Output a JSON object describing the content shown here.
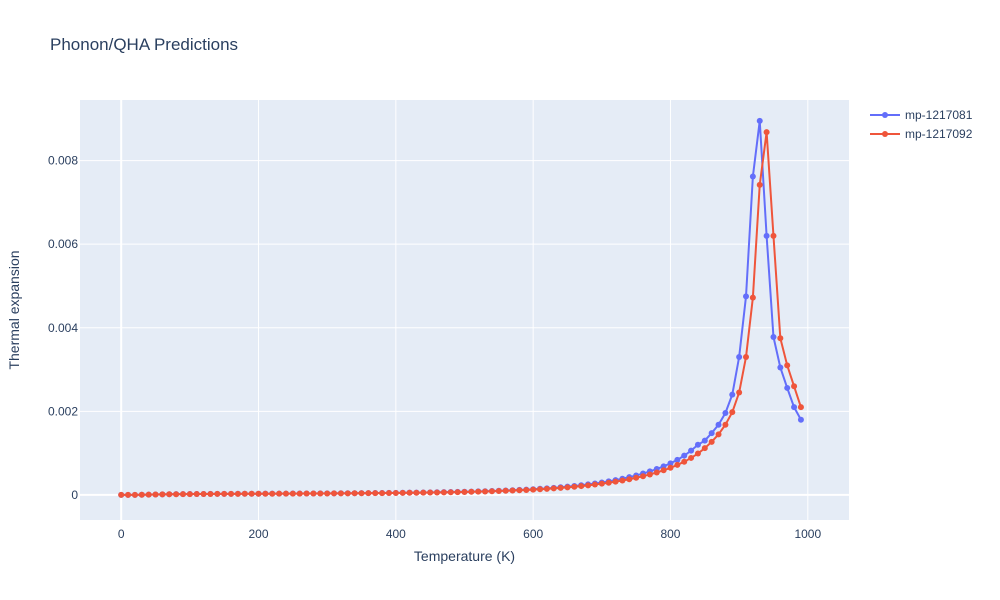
{
  "chart_data": {
    "type": "line",
    "title": "Phonon/QHA Predictions",
    "xlabel": "Temperature (K)",
    "ylabel": "Thermal expansion",
    "xlim": [
      -60,
      1060
    ],
    "ylim": [
      -0.0006,
      0.00945
    ],
    "x_ticks": [
      0,
      200,
      400,
      600,
      800,
      1000
    ],
    "x_tick_labels": [
      "0",
      "200",
      "400",
      "600",
      "800",
      "1000"
    ],
    "y_ticks": [
      0,
      0.002,
      0.004,
      0.006,
      0.008
    ],
    "y_tick_labels": [
      "0",
      "0.002",
      "0.004",
      "0.006",
      "0.008"
    ],
    "grid": true,
    "legend_position": "top-right, outside plot",
    "series": [
      {
        "name": "mp-1217081",
        "color": "#636efa",
        "x": [
          0,
          10,
          20,
          30,
          40,
          50,
          60,
          70,
          80,
          90,
          100,
          110,
          120,
          130,
          140,
          150,
          160,
          170,
          180,
          190,
          200,
          210,
          220,
          230,
          240,
          250,
          260,
          270,
          280,
          290,
          300,
          310,
          320,
          330,
          340,
          350,
          360,
          370,
          380,
          390,
          400,
          410,
          420,
          430,
          440,
          450,
          460,
          470,
          480,
          490,
          500,
          510,
          520,
          530,
          540,
          550,
          560,
          570,
          580,
          590,
          600,
          610,
          620,
          630,
          640,
          650,
          660,
          670,
          680,
          690,
          700,
          710,
          720,
          730,
          740,
          750,
          760,
          770,
          780,
          790,
          800,
          810,
          820,
          830,
          840,
          850,
          860,
          870,
          880,
          890,
          900,
          910,
          920,
          930,
          940,
          950,
          960,
          970,
          980,
          990
        ],
        "y": [
          0,
          0,
          2e-06,
          5e-06,
          8e-06,
          1.1e-05,
          1.4e-05,
          1.6e-05,
          1.8e-05,
          2e-05,
          2.1e-05,
          2.2e-05,
          2.3e-05,
          2.4e-05,
          2.5e-05,
          2.6e-05,
          2.6e-05,
          2.7e-05,
          2.8e-05,
          2.8e-05,
          2.9e-05,
          3e-05,
          3e-05,
          3.1e-05,
          3.2e-05,
          3.3e-05,
          3.3e-05,
          3.4e-05,
          3.5e-05,
          3.6e-05,
          3.7e-05,
          3.8e-05,
          3.9e-05,
          4e-05,
          4.1e-05,
          4.2e-05,
          4.4e-05,
          4.5e-05,
          4.7e-05,
          4.8e-05,
          5e-05,
          5.2e-05,
          5.4e-05,
          5.6e-05,
          5.8e-05,
          6e-05,
          6.3e-05,
          6.6e-05,
          6.9e-05,
          7.2e-05,
          7.6e-05,
          8e-05,
          8.4e-05,
          8.9e-05,
          9.4e-05,
          0.0001,
          0.000106,
          0.000113,
          0.00012,
          0.000128,
          0.000137,
          0.000147,
          0.000158,
          0.00017,
          0.000183,
          0.000198,
          0.000214,
          0.000232,
          0.000252,
          0.000274,
          0.000298,
          0.000325,
          0.000355,
          0.000388,
          0.000425,
          0.000466,
          0.000512,
          0.000563,
          0.00062,
          0.000684,
          0.000755,
          0.00084,
          0.00094,
          0.00106,
          0.0012,
          0.0013,
          0.00148,
          0.00168,
          0.00196,
          0.0024,
          0.0033,
          0.00475,
          0.00762,
          0.00895,
          0.0062,
          0.00378,
          0.00305,
          0.00256,
          0.0021,
          0.0018
        ]
      },
      {
        "name": "mp-1217092",
        "color": "#ef553b",
        "x": [
          0,
          10,
          20,
          30,
          40,
          50,
          60,
          70,
          80,
          90,
          100,
          110,
          120,
          130,
          140,
          150,
          160,
          170,
          180,
          190,
          200,
          210,
          220,
          230,
          240,
          250,
          260,
          270,
          280,
          290,
          300,
          310,
          320,
          330,
          340,
          350,
          360,
          370,
          380,
          390,
          400,
          410,
          420,
          430,
          440,
          450,
          460,
          470,
          480,
          490,
          500,
          510,
          520,
          530,
          540,
          550,
          560,
          570,
          580,
          590,
          600,
          610,
          620,
          630,
          640,
          650,
          660,
          670,
          680,
          690,
          700,
          710,
          720,
          730,
          740,
          750,
          760,
          770,
          780,
          790,
          800,
          810,
          820,
          830,
          840,
          850,
          860,
          870,
          880,
          890,
          900,
          910,
          920,
          930,
          940,
          950,
          960,
          970,
          980,
          990
        ],
        "y": [
          0,
          0,
          2e-06,
          5e-06,
          8e-06,
          1.1e-05,
          1.3e-05,
          1.5e-05,
          1.7e-05,
          1.9e-05,
          2e-05,
          2.1e-05,
          2.2e-05,
          2.3e-05,
          2.4e-05,
          2.5e-05,
          2.5e-05,
          2.6e-05,
          2.7e-05,
          2.7e-05,
          2.8e-05,
          2.9e-05,
          2.9e-05,
          3e-05,
          3.1e-05,
          3.1e-05,
          3.2e-05,
          3.3e-05,
          3.4e-05,
          3.5e-05,
          3.5e-05,
          3.6e-05,
          3.7e-05,
          3.8e-05,
          3.9e-05,
          4e-05,
          4.2e-05,
          4.3e-05,
          4.4e-05,
          4.6e-05,
          4.7e-05,
          4.9e-05,
          5.1e-05,
          5.3e-05,
          5.5e-05,
          5.7e-05,
          5.9e-05,
          6.2e-05,
          6.5e-05,
          6.8e-05,
          7.1e-05,
          7.5e-05,
          7.9e-05,
          8.3e-05,
          8.8e-05,
          9.3e-05,
          9.9e-05,
          0.000105,
          0.000112,
          0.000119,
          0.000127,
          0.000136,
          0.000146,
          0.000157,
          0.000169,
          0.000182,
          0.000196,
          0.000212,
          0.000229,
          0.000248,
          0.000269,
          0.000292,
          0.000317,
          0.000345,
          0.000376,
          0.00041,
          0.000448,
          0.00049,
          0.000537,
          0.00059,
          0.00065,
          0.000718,
          0.000795,
          0.000885,
          0.00099,
          0.00112,
          0.00127,
          0.00145,
          0.00168,
          0.00198,
          0.00245,
          0.0033,
          0.00472,
          0.00742,
          0.00868,
          0.0062,
          0.00375,
          0.0031,
          0.0026,
          0.0021
        ]
      }
    ]
  }
}
